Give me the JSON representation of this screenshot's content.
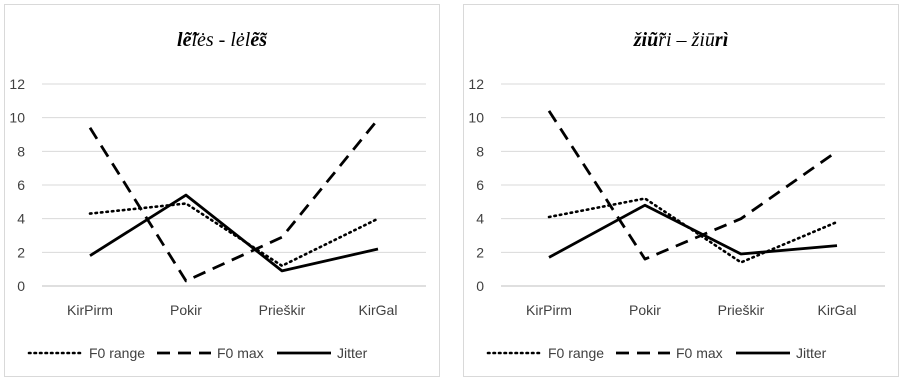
{
  "chart_data": [
    {
      "type": "line",
      "title_parts": [
        {
          "text": "l",
          "b": true,
          "i": true
        },
        {
          "text": "ẽ̃",
          "b": true,
          "i": true
        },
        {
          "text": "lės - lėl",
          "b": false,
          "i": true
        },
        {
          "text": "ẽ̃s",
          "b": true,
          "i": true
        }
      ],
      "categories": [
        "KirPirm",
        "Pokir",
        "Prieškir",
        "KirGal"
      ],
      "ylim": [
        0,
        12
      ],
      "yticks": [
        "0",
        "2",
        "4",
        "6",
        "8",
        "10",
        "12"
      ],
      "grid": true,
      "legend_position": "bottom",
      "series": [
        {
          "name": "F0 range",
          "style": "dotted",
          "values": [
            4.3,
            4.9,
            1.2,
            4.0
          ]
        },
        {
          "name": "F0 max",
          "style": "dashed",
          "values": [
            9.4,
            0.3,
            2.9,
            9.9
          ]
        },
        {
          "name": "Jitter",
          "style": "solid",
          "values": [
            1.8,
            5.4,
            0.9,
            2.2
          ]
        }
      ]
    },
    {
      "type": "line",
      "title_parts": [
        {
          "text": "žiũ̃",
          "b": true,
          "i": true
        },
        {
          "text": "ri – žiū",
          "b": false,
          "i": true
        },
        {
          "text": "rì",
          "b": true,
          "i": true
        }
      ],
      "categories": [
        "KirPirm",
        "Pokir",
        "Prieškir",
        "KirGal"
      ],
      "ylim": [
        0,
        12
      ],
      "yticks": [
        "0",
        "2",
        "4",
        "6",
        "8",
        "10",
        "12"
      ],
      "grid": true,
      "legend_position": "bottom",
      "series": [
        {
          "name": "F0 range",
          "style": "dotted",
          "values": [
            4.1,
            5.2,
            1.4,
            3.8
          ]
        },
        {
          "name": "F0 max",
          "style": "dashed",
          "values": [
            10.4,
            1.6,
            4.0,
            8.0
          ]
        },
        {
          "name": "Jitter",
          "style": "solid",
          "values": [
            1.7,
            4.8,
            1.9,
            2.4
          ]
        }
      ]
    }
  ]
}
